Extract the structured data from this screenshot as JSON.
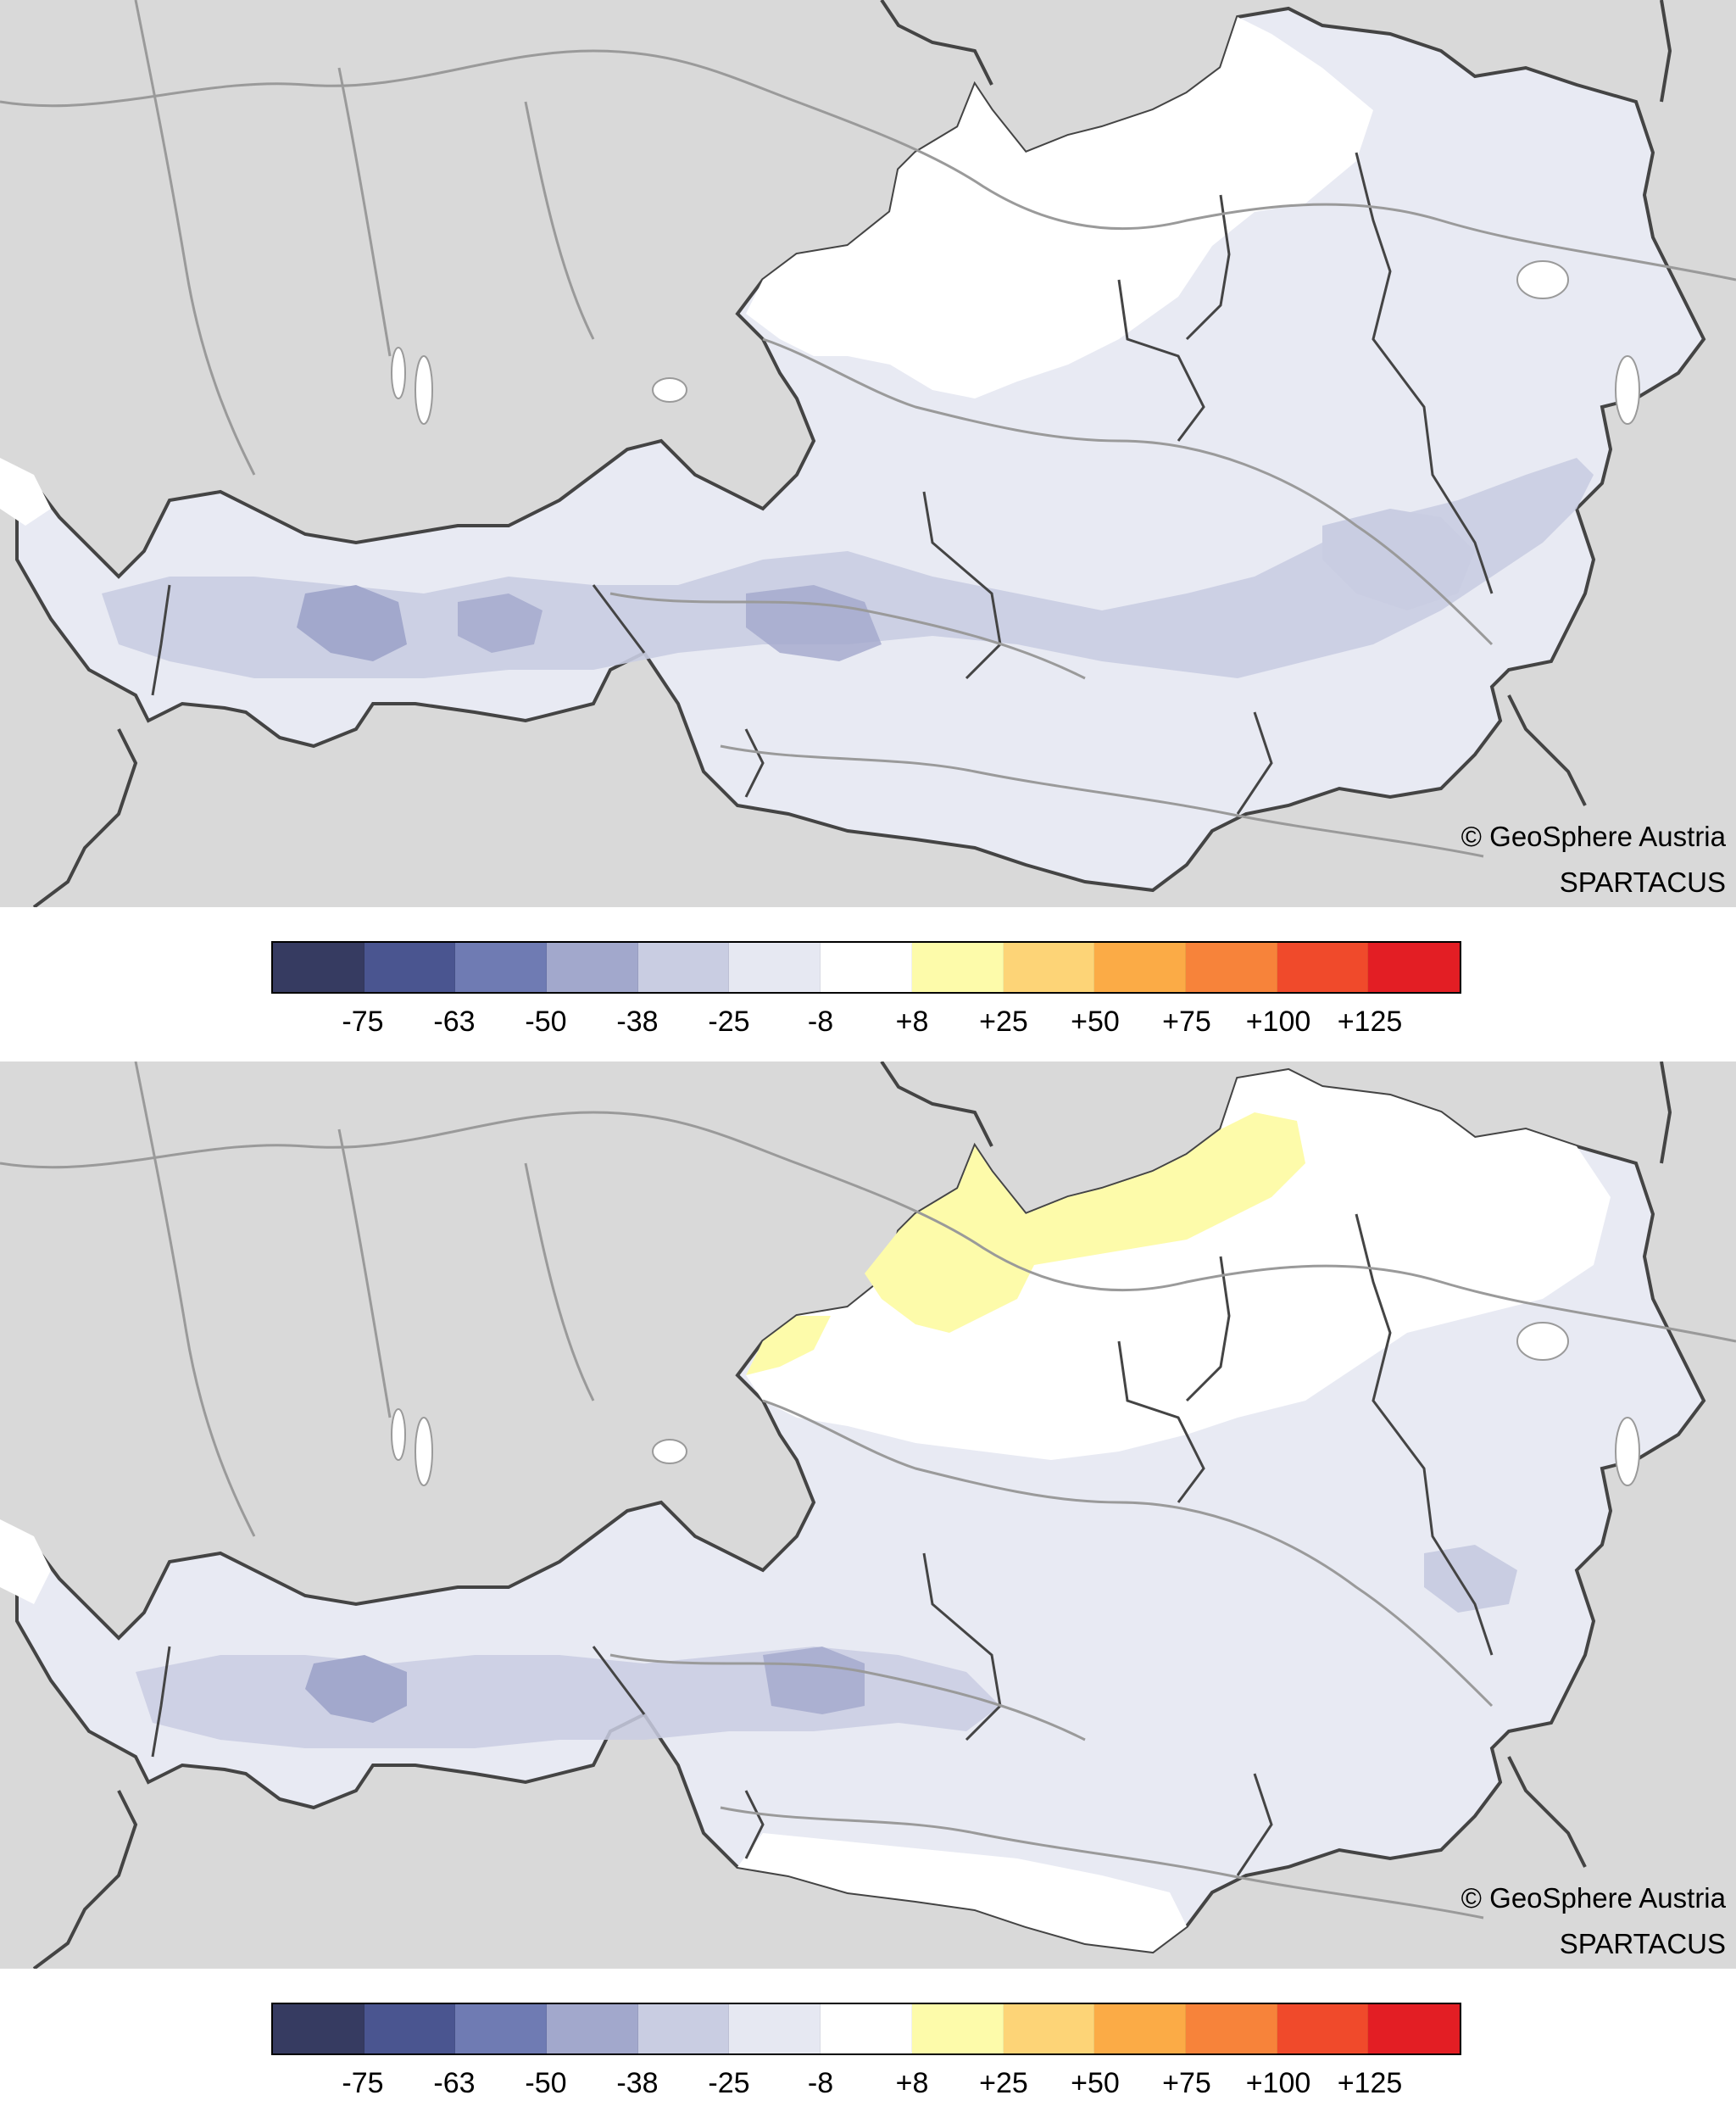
{
  "panels": [
    {
      "credit_line1": "© GeoSphere Austria",
      "credit_line2": "SPARTACUS"
    },
    {
      "credit_line1": "© GeoSphere Austria",
      "credit_line2": "SPARTACUS"
    }
  ],
  "legend": {
    "labels": [
      "-75",
      "-63",
      "-50",
      "-38",
      "-25",
      "-8",
      "+8",
      "+25",
      "+50",
      "+75",
      "+100",
      "+125"
    ],
    "colors": [
      "#363b61",
      "#4a5590",
      "#6f7bb3",
      "#a2a8cc",
      "#c9cde2",
      "#e6e8f2",
      "#ffffff",
      "#fdfbaa",
      "#fdd477",
      "#fbab46",
      "#f7833a",
      "#f04a2b",
      "#e31e24"
    ]
  },
  "map_colors": {
    "background": "#d9d9d9",
    "border": "#444444",
    "river": "#9a9a9a",
    "lake": "#ffffff"
  }
}
